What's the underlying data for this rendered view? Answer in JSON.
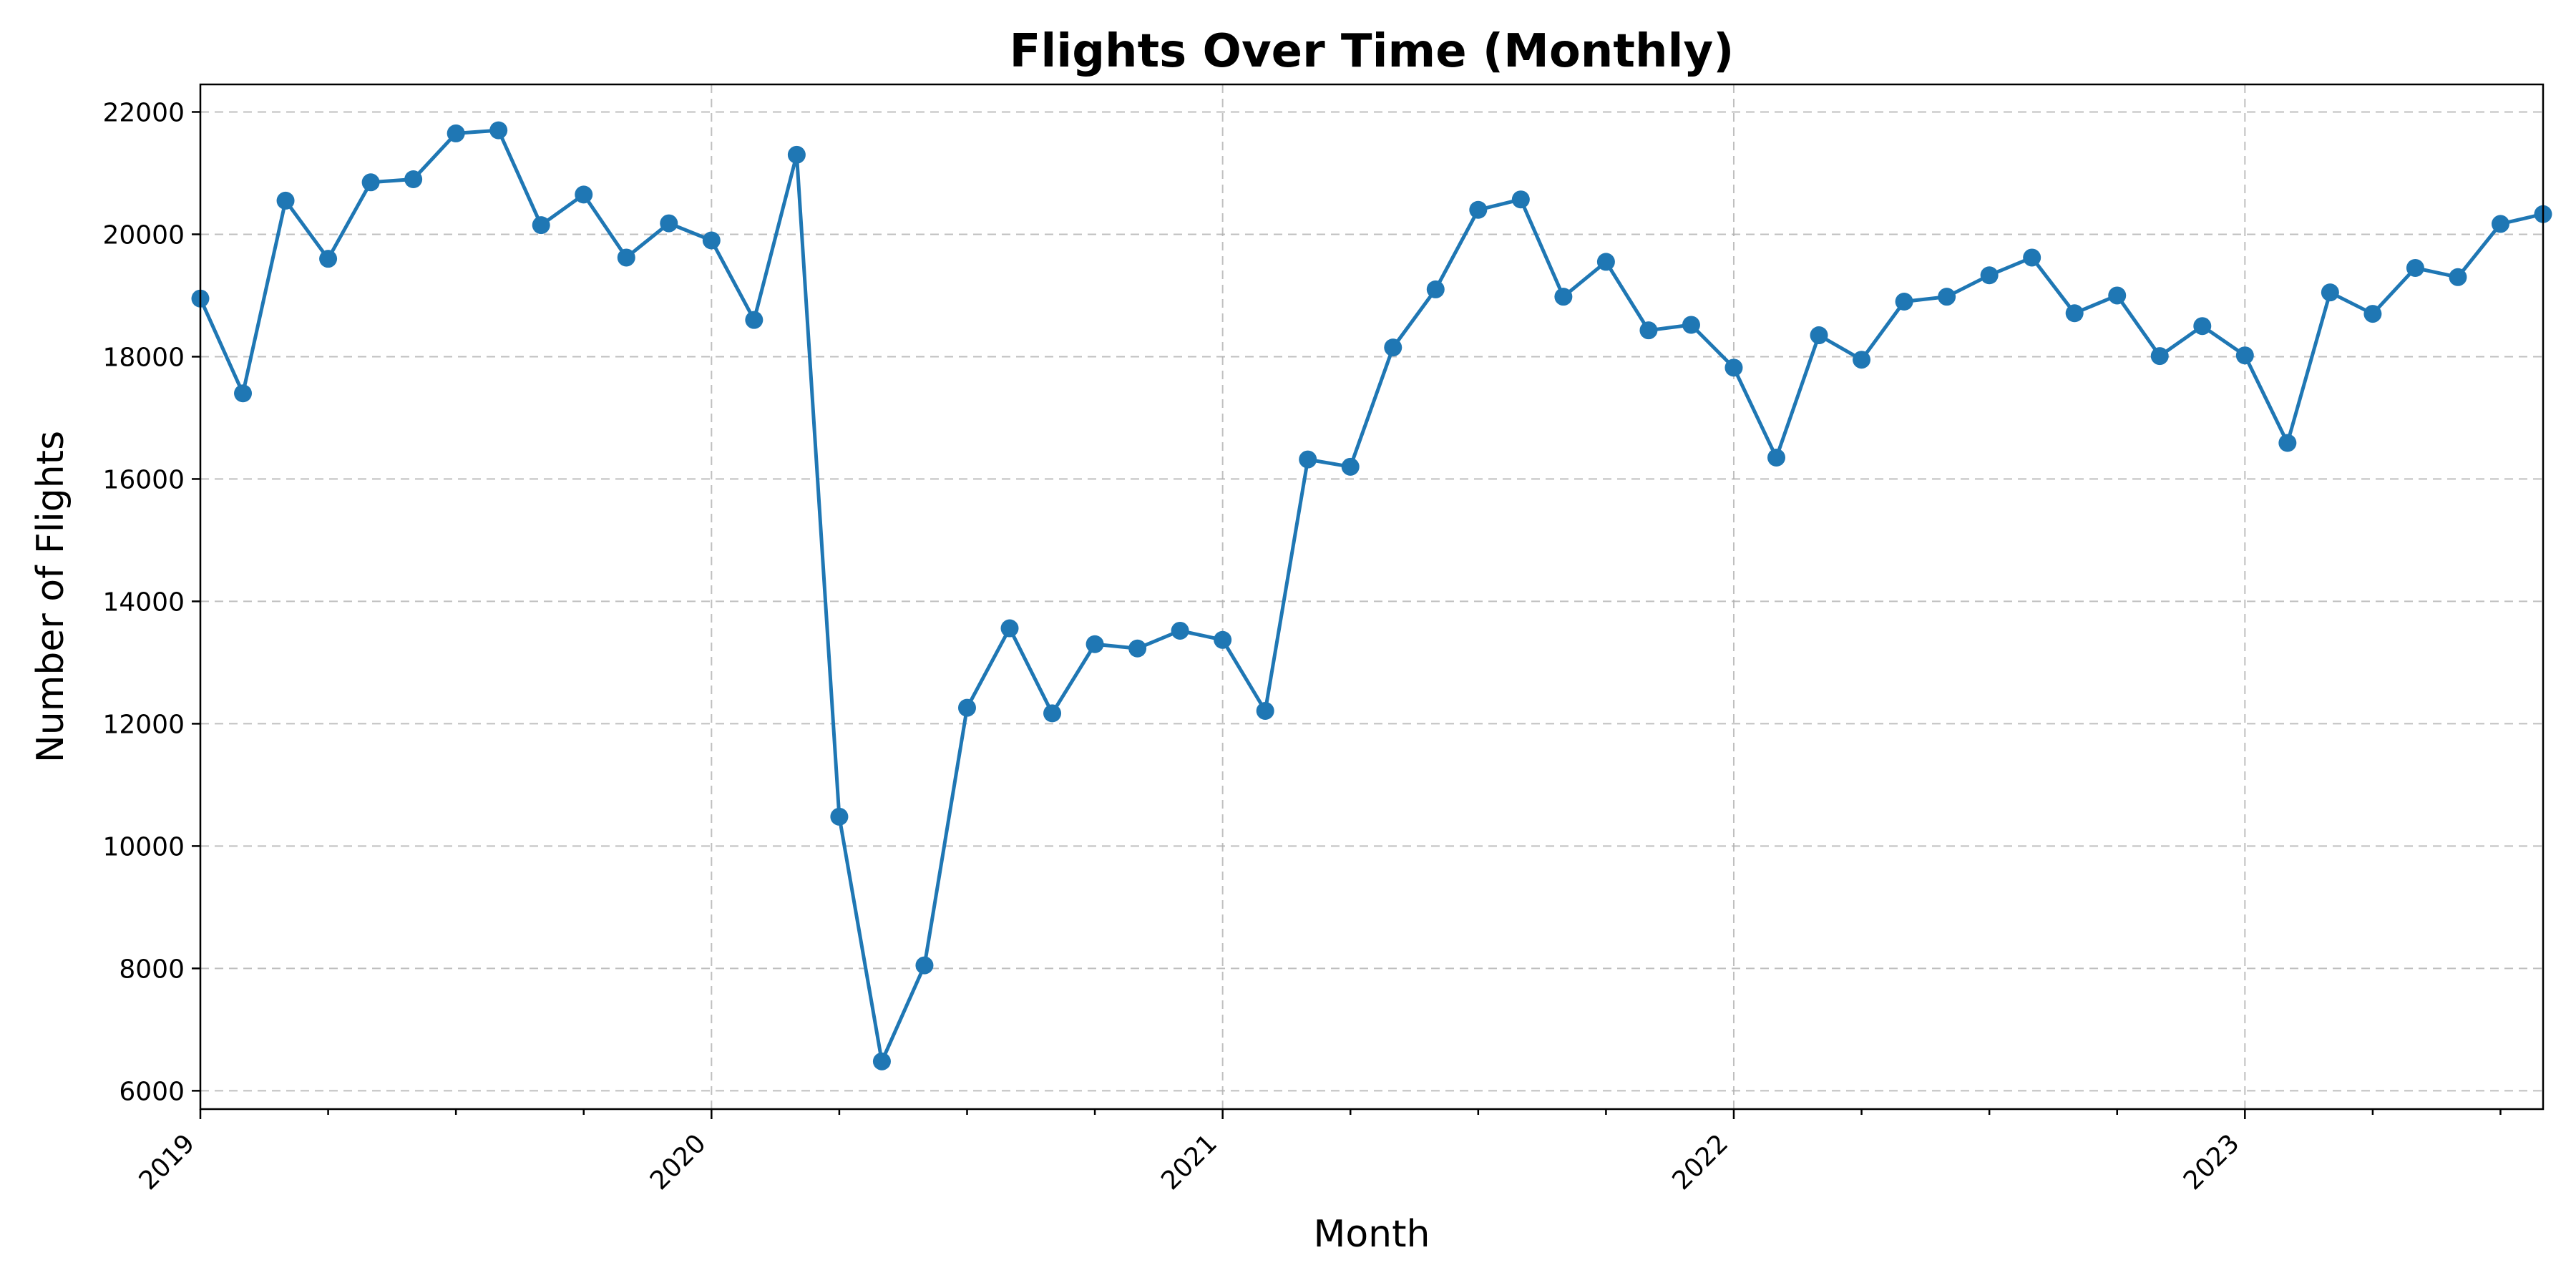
{
  "chart_data": {
    "type": "line",
    "title": "Flights Over Time (Monthly)",
    "xlabel": "Month",
    "ylabel": "Number of Flights",
    "x_start": "2019-01",
    "xlim": [
      "2019-01",
      "2023-08"
    ],
    "ylim": [
      5700,
      22450
    ],
    "yticks": [
      6000,
      8000,
      10000,
      12000,
      14000,
      16000,
      18000,
      20000,
      22000
    ],
    "xticks": [
      "2019",
      "2020",
      "2021",
      "2022",
      "2023"
    ],
    "grid": true,
    "line_color": "#1f77b4",
    "series": [
      {
        "x": [
          "2019-01",
          "2019-02",
          "2019-03",
          "2019-04",
          "2019-05",
          "2019-06",
          "2019-07",
          "2019-08",
          "2019-09",
          "2019-10",
          "2019-11",
          "2019-12",
          "2020-01",
          "2020-02",
          "2020-03",
          "2020-04",
          "2020-05",
          "2020-06",
          "2020-07",
          "2020-08",
          "2020-09",
          "2020-10",
          "2020-11",
          "2020-12",
          "2021-01",
          "2021-02",
          "2021-03",
          "2021-04",
          "2021-05",
          "2021-06",
          "2021-07",
          "2021-08",
          "2021-09",
          "2021-10",
          "2021-11",
          "2021-12",
          "2022-01",
          "2022-02",
          "2022-03",
          "2022-04",
          "2022-05",
          "2022-06",
          "2022-07",
          "2022-08",
          "2022-09",
          "2022-10",
          "2022-11",
          "2022-12",
          "2023-01",
          "2023-02",
          "2023-03",
          "2023-04",
          "2023-05",
          "2023-06",
          "2023-07",
          "2023-08"
        ],
        "values": [
          18950,
          17400,
          20550,
          19600,
          20850,
          20900,
          21650,
          21700,
          20150,
          20650,
          19620,
          20180,
          19900,
          18600,
          21300,
          10480,
          6480,
          8050,
          12260,
          13560,
          12170,
          13300,
          13230,
          13520,
          13370,
          12210,
          16320,
          16200,
          18150,
          19100,
          20400,
          20570,
          18980,
          19550,
          18430,
          18520,
          17820,
          16350,
          18350,
          17950,
          18900,
          18980,
          19330,
          19620,
          18710,
          19000,
          18010,
          18500,
          18020,
          16590,
          19050,
          18700,
          19450,
          19300,
          20170,
          20330
        ]
      }
    ]
  }
}
